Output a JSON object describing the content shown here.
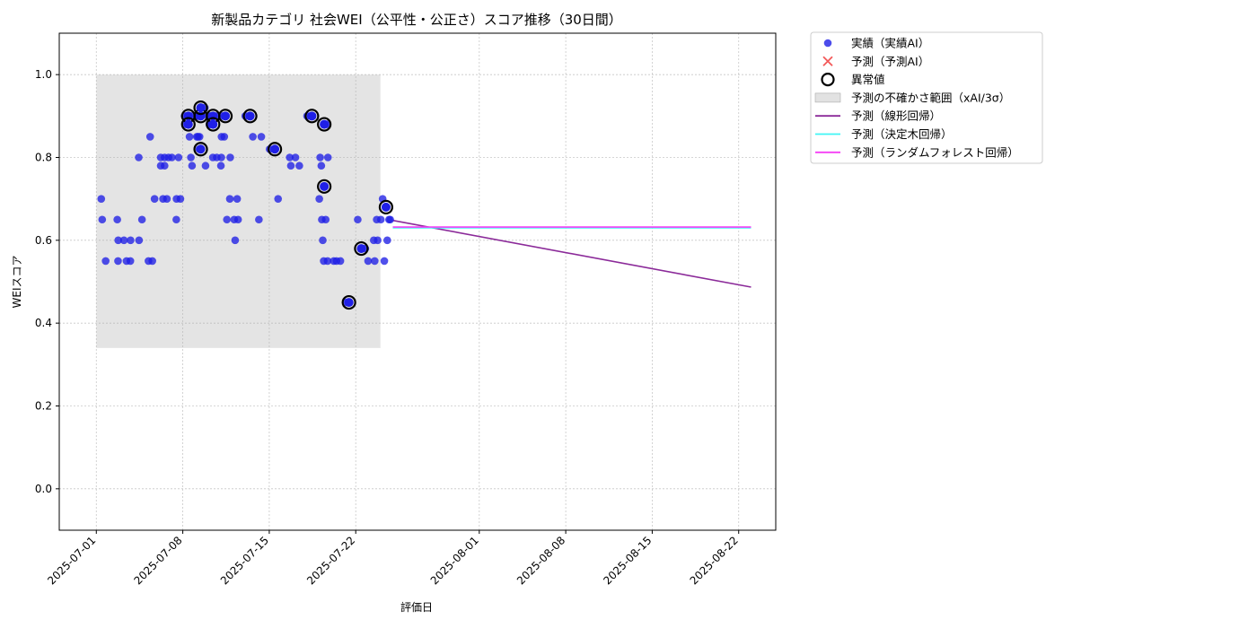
{
  "chart_data": {
    "type": "scatter",
    "title": "新製品カテゴリ 社会WEI（公平性・公正さ）スコア推移（30日間）",
    "xlabel": "評価日",
    "ylabel": "WEIスコア",
    "xlim": [
      "2025-06-28",
      "2025-08-25"
    ],
    "ylim": [
      -0.1,
      1.1
    ],
    "x_ticks": [
      "2025-07-01",
      "2025-07-08",
      "2025-07-15",
      "2025-07-22",
      "2025-08-01",
      "2025-08-08",
      "2025-08-15",
      "2025-08-22"
    ],
    "y_ticks": [
      "0.0",
      "0.2",
      "0.4",
      "0.6",
      "0.8",
      "1.0"
    ],
    "grid": true,
    "legend_position": "outside-top-right",
    "legend": [
      {
        "label": "実績（実績AI）",
        "kind": "dot",
        "color": "#1f1fe6"
      },
      {
        "label": "予測（予測AI）",
        "kind": "cross",
        "color": "#f03030"
      },
      {
        "label": "異常値",
        "kind": "ring",
        "color": "#000000"
      },
      {
        "label": "予測の不確かさ範囲（xAI/3σ）",
        "kind": "band",
        "color": "#bfbfbf"
      },
      {
        "label": "予測（線形回帰）",
        "kind": "line",
        "color": "#8b2a99"
      },
      {
        "label": "予測（決定木回帰）",
        "kind": "line",
        "color": "#3ff5f5"
      },
      {
        "label": "予測（ランダムフォレスト回帰）",
        "kind": "line",
        "color": "#f53ff5"
      }
    ],
    "uncertainty_band": {
      "x_start": "2025-07-01",
      "x_end": "2025-07-24",
      "y_low": 0.34,
      "y_high": 1.0
    },
    "actual_points": [
      [
        "2025-07-01",
        0.7
      ],
      [
        "2025-07-01",
        0.55
      ],
      [
        "2025-07-01",
        0.65
      ],
      [
        "2025-07-02",
        0.65
      ],
      [
        "2025-07-02",
        0.55
      ],
      [
        "2025-07-02",
        0.6
      ],
      [
        "2025-07-03",
        0.55
      ],
      [
        "2025-07-03",
        0.55
      ],
      [
        "2025-07-03",
        0.6
      ],
      [
        "2025-07-03",
        0.6
      ],
      [
        "2025-07-04",
        0.65
      ],
      [
        "2025-07-04",
        0.6
      ],
      [
        "2025-07-04",
        0.8
      ],
      [
        "2025-07-05",
        0.85
      ],
      [
        "2025-07-05",
        0.7
      ],
      [
        "2025-07-05",
        0.55
      ],
      [
        "2025-07-05",
        0.55
      ],
      [
        "2025-07-06",
        0.7
      ],
      [
        "2025-07-06",
        0.7
      ],
      [
        "2025-07-06",
        0.78
      ],
      [
        "2025-07-06",
        0.78
      ],
      [
        "2025-07-06",
        0.8
      ],
      [
        "2025-07-06",
        0.8
      ],
      [
        "2025-07-06",
        0.8
      ],
      [
        "2025-07-07",
        0.8
      ],
      [
        "2025-07-07",
        0.8
      ],
      [
        "2025-07-07",
        0.65
      ],
      [
        "2025-07-07",
        0.7
      ],
      [
        "2025-07-07",
        0.7
      ],
      [
        "2025-07-08",
        0.8
      ],
      [
        "2025-07-08",
        0.78
      ],
      [
        "2025-07-08",
        0.88
      ],
      [
        "2025-07-08",
        0.9
      ],
      [
        "2025-07-08",
        0.88
      ],
      [
        "2025-07-08",
        0.9
      ],
      [
        "2025-07-08",
        0.85
      ],
      [
        "2025-07-09",
        0.85
      ],
      [
        "2025-07-09",
        0.82
      ],
      [
        "2025-07-09",
        0.85
      ],
      [
        "2025-07-09",
        0.9
      ],
      [
        "2025-07-09",
        0.78
      ],
      [
        "2025-07-09",
        0.85
      ],
      [
        "2025-07-09",
        0.9
      ],
      [
        "2025-07-09",
        0.92
      ],
      [
        "2025-07-10",
        0.9
      ],
      [
        "2025-07-10",
        0.88
      ],
      [
        "2025-07-10",
        0.8
      ],
      [
        "2025-07-10",
        0.8
      ],
      [
        "2025-07-10",
        0.88
      ],
      [
        "2025-07-10",
        0.9
      ],
      [
        "2025-07-10",
        0.9
      ],
      [
        "2025-07-11",
        0.85
      ],
      [
        "2025-07-11",
        0.8
      ],
      [
        "2025-07-11",
        0.85
      ],
      [
        "2025-07-11",
        0.9
      ],
      [
        "2025-07-11",
        0.7
      ],
      [
        "2025-07-11",
        0.65
      ],
      [
        "2025-07-11",
        0.8
      ],
      [
        "2025-07-11",
        0.78
      ],
      [
        "2025-07-12",
        0.7
      ],
      [
        "2025-07-12",
        0.65
      ],
      [
        "2025-07-12",
        0.65
      ],
      [
        "2025-07-12",
        0.6
      ],
      [
        "2025-07-13",
        0.9
      ],
      [
        "2025-07-13",
        0.85
      ],
      [
        "2025-07-14",
        0.85
      ],
      [
        "2025-07-14",
        0.65
      ],
      [
        "2025-07-15",
        0.82
      ],
      [
        "2025-07-15",
        0.7
      ],
      [
        "2025-07-16",
        0.8
      ],
      [
        "2025-07-16",
        0.78
      ],
      [
        "2025-07-17",
        0.78
      ],
      [
        "2025-07-17",
        0.8
      ],
      [
        "2025-07-18",
        0.9
      ],
      [
        "2025-07-18",
        0.9
      ],
      [
        "2025-07-19",
        0.88
      ],
      [
        "2025-07-19",
        0.8
      ],
      [
        "2025-07-19",
        0.78
      ],
      [
        "2025-07-19",
        0.8
      ],
      [
        "2025-07-19",
        0.65
      ],
      [
        "2025-07-19",
        0.65
      ],
      [
        "2025-07-19",
        0.6
      ],
      [
        "2025-07-19",
        0.7
      ],
      [
        "2025-07-19",
        0.55
      ],
      [
        "2025-07-19",
        0.55
      ],
      [
        "2025-07-19",
        0.73
      ],
      [
        "2025-07-20",
        0.55
      ],
      [
        "2025-07-20",
        0.55
      ],
      [
        "2025-07-20",
        0.55
      ],
      [
        "2025-07-21",
        0.45
      ],
      [
        "2025-07-21",
        0.45
      ],
      [
        "2025-07-22",
        0.58
      ],
      [
        "2025-07-22",
        0.65
      ],
      [
        "2025-07-23",
        0.65
      ],
      [
        "2025-07-23",
        0.6
      ],
      [
        "2025-07-23",
        0.6
      ],
      [
        "2025-07-23",
        0.55
      ],
      [
        "2025-07-23",
        0.55
      ],
      [
        "2025-07-24",
        0.65
      ],
      [
        "2025-07-24",
        0.68
      ],
      [
        "2025-07-24",
        0.7
      ],
      [
        "2025-07-24",
        0.65
      ],
      [
        "2025-07-24",
        0.6
      ],
      [
        "2025-07-24",
        0.55
      ],
      [
        "2025-07-24",
        0.65
      ]
    ],
    "anomaly_points": [
      [
        "2025-07-08",
        0.9
      ],
      [
        "2025-07-08",
        0.88
      ],
      [
        "2025-07-09",
        0.82
      ],
      [
        "2025-07-09",
        0.9
      ],
      [
        "2025-07-09",
        0.92
      ],
      [
        "2025-07-10",
        0.9
      ],
      [
        "2025-07-10",
        0.88
      ],
      [
        "2025-07-11",
        0.9
      ],
      [
        "2025-07-13",
        0.9
      ],
      [
        "2025-07-15",
        0.82
      ],
      [
        "2025-07-18",
        0.9
      ],
      [
        "2025-07-19",
        0.88
      ],
      [
        "2025-07-19",
        0.73
      ],
      [
        "2025-07-21",
        0.45
      ],
      [
        "2025-07-22",
        0.58
      ],
      [
        "2025-07-24",
        0.68
      ]
    ],
    "series": [
      {
        "name": "予測（線形回帰）",
        "color": "#8b2a99",
        "x": [
          "2025-07-25",
          "2025-08-23"
        ],
        "y": [
          0.648,
          0.487
        ]
      },
      {
        "name": "予測（決定木回帰）",
        "color": "#3ff5f5",
        "x": [
          "2025-07-25",
          "2025-08-23"
        ],
        "y": [
          0.63,
          0.63
        ]
      },
      {
        "name": "予測（ランダムフォレスト回帰）",
        "color": "#f53ff5",
        "x": [
          "2025-07-25",
          "2025-08-23"
        ],
        "y": [
          0.632,
          0.632
        ]
      }
    ]
  }
}
